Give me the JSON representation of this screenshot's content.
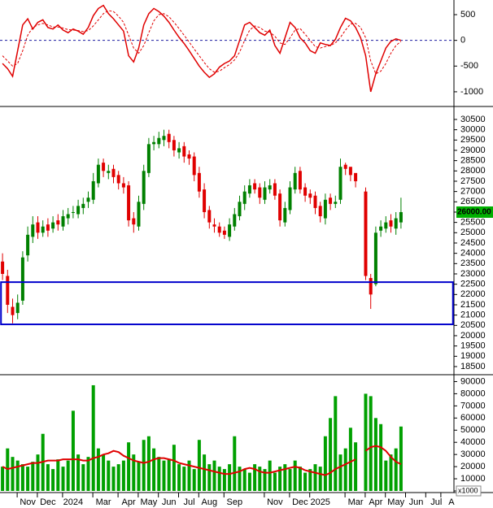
{
  "chart_data": [
    {
      "type": "line",
      "xlim": [
        -0.5,
        89.5
      ],
      "ylim": [
        -1270,
        785
      ],
      "yticks": [
        500,
        0,
        -500,
        -1000
      ],
      "reference_line": {
        "value": 0,
        "color": "#1a1aa0"
      },
      "series": [
        {
          "color": "#e00000",
          "dashed": false,
          "values": [
            -450,
            -550,
            -700,
            -200,
            300,
            420,
            220,
            350,
            400,
            250,
            220,
            300,
            200,
            150,
            220,
            180,
            120,
            250,
            480,
            620,
            680,
            520,
            420,
            300,
            180,
            -300,
            -420,
            -150,
            300,
            520,
            620,
            560,
            470,
            350,
            200,
            60,
            -60,
            -200,
            -350,
            -500,
            -620,
            -720,
            -650,
            -520,
            -450,
            -400,
            -300,
            0,
            300,
            350,
            250,
            150,
            100,
            200,
            -100,
            -250,
            50,
            350,
            250,
            50,
            -50,
            -200,
            -250,
            -50,
            -80,
            -100,
            20,
            250,
            430,
            380,
            250,
            50,
            -300,
            -1000,
            -650,
            -400,
            -150,
            -20,
            30,
            0
          ]
        },
        {
          "color": "#e00000",
          "dashed": true,
          "values": [
            -300,
            -400,
            -500,
            -450,
            -200,
            100,
            250,
            300,
            330,
            300,
            260,
            260,
            240,
            210,
            200,
            190,
            170,
            190,
            280,
            400,
            520,
            580,
            560,
            470,
            350,
            100,
            -150,
            -250,
            -100,
            150,
            380,
            500,
            520,
            460,
            350,
            230,
            100,
            -30,
            -170,
            -300,
            -430,
            -550,
            -620,
            -600,
            -530,
            -470,
            -380,
            -230,
            0,
            200,
            280,
            250,
            180,
            160,
            80,
            -50,
            -80,
            50,
            200,
            230,
            120,
            0,
            -120,
            -150,
            -120,
            -100,
            -50,
            60,
            200,
            320,
            330,
            250,
            50,
            -400,
            -650,
            -600,
            -450,
            -250,
            -100,
            -20
          ]
        }
      ]
    },
    {
      "type": "candlestick",
      "xlim": [
        -0.5,
        89.5
      ],
      "ylim": [
        18145,
        31090
      ],
      "yticks": [
        30500,
        30000,
        29500,
        29000,
        28500,
        28000,
        27500,
        27000,
        26500,
        26000,
        25500,
        25000,
        24500,
        24000,
        23500,
        23000,
        22500,
        22000,
        21500,
        21000,
        20500,
        20000,
        19500,
        19000,
        18500
      ],
      "up_color": "#008000",
      "down_color": "#e00000",
      "last_price": {
        "value": 26000,
        "label": "26000.00",
        "color": "#00b000"
      },
      "box": {
        "x": [
          -0.3,
          89.3
        ],
        "y": [
          20550,
          22600
        ],
        "color": "#0000cc"
      },
      "open": [
        23600,
        22900,
        21400,
        21100,
        21700,
        23900,
        24800,
        25500,
        25000,
        25400,
        25200,
        25600,
        25300,
        25700,
        26000,
        25900,
        26200,
        26500,
        26600,
        27400,
        28400,
        27900,
        28100,
        27800,
        27400,
        27300,
        25700,
        25300,
        26400,
        27900,
        29300,
        29300,
        29500,
        29800,
        29500,
        28900,
        29200,
        28800,
        28700,
        27900,
        27100,
        26100,
        25400,
        25300,
        25100,
        24800,
        25300,
        25800,
        26400,
        26900,
        27400,
        27200,
        26600,
        27100,
        27400,
        26900,
        25500,
        26100,
        27100,
        28000,
        27200,
        26900,
        26800,
        26300,
        25700,
        26700,
        26400,
        26600,
        28300,
        28200,
        27900,
        null,
        27000,
        22800,
        22500,
        25100,
        25200,
        25600,
        25200,
        25500
      ],
      "high": [
        24000,
        23200,
        21800,
        22000,
        24100,
        25300,
        25800,
        25800,
        25600,
        25700,
        25800,
        25900,
        26100,
        26200,
        26300,
        26600,
        26700,
        27000,
        27900,
        28600,
        28600,
        28300,
        28300,
        28000,
        27700,
        27500,
        26000,
        26800,
        28300,
        29600,
        29700,
        29900,
        30000,
        30000,
        29700,
        29400,
        29400,
        29000,
        28900,
        28200,
        27400,
        26300,
        25700,
        25500,
        25300,
        25700,
        26200,
        26800,
        27300,
        27600,
        27600,
        27400,
        27500,
        27600,
        27600,
        27100,
        26500,
        27500,
        28200,
        28200,
        27400,
        27100,
        27000,
        26500,
        26900,
        26900,
        26800,
        28600,
        28400,
        28100,
        27800,
        null,
        27200,
        23000,
        25300,
        25600,
        25800,
        25900,
        26000,
        26700
      ],
      "low": [
        22700,
        21100,
        20600,
        20800,
        21500,
        23600,
        24500,
        24700,
        24800,
        24800,
        25000,
        25100,
        25100,
        25400,
        25700,
        25700,
        25900,
        26200,
        26400,
        27200,
        27700,
        27600,
        27400,
        27100,
        26900,
        25300,
        25000,
        25100,
        26100,
        27700,
        29000,
        29100,
        29200,
        29100,
        28700,
        28600,
        28400,
        28300,
        27500,
        26700,
        25700,
        25200,
        25000,
        24800,
        24700,
        24600,
        25100,
        25600,
        26100,
        26700,
        26900,
        26400,
        26400,
        26900,
        26600,
        25300,
        25300,
        25900,
        26900,
        26900,
        26500,
        26400,
        25900,
        25500,
        25400,
        26100,
        26200,
        26400,
        27800,
        27500,
        27200,
        null,
        22700,
        21300,
        22400,
        24800,
        25000,
        25000,
        24900,
        25200
      ],
      "close": [
        23000,
        21500,
        21000,
        21600,
        23800,
        24900,
        25400,
        25000,
        25300,
        25100,
        25500,
        25400,
        25800,
        25900,
        26000,
        26300,
        26400,
        26700,
        27500,
        28300,
        28000,
        28000,
        27700,
        27400,
        27200,
        25600,
        25400,
        26500,
        28000,
        29300,
        29400,
        29600,
        29700,
        29400,
        29000,
        29100,
        28700,
        28600,
        27800,
        27000,
        26000,
        25500,
        25300,
        25000,
        24900,
        25400,
        25900,
        26500,
        27000,
        27300,
        27100,
        26700,
        27200,
        27300,
        26800,
        25600,
        26200,
        27200,
        27900,
        27100,
        26800,
        26700,
        26200,
        25800,
        26600,
        26400,
        26500,
        28200,
        28100,
        27800,
        27500,
        null,
        22900,
        22000,
        25000,
        25300,
        25500,
        25300,
        25700,
        26000
      ]
    },
    {
      "type": "bar",
      "xlim": [
        -0.5,
        89.5
      ],
      "ylim": [
        0,
        95000
      ],
      "yticks": [
        90000,
        80000,
        70000,
        60000,
        50000,
        40000,
        30000,
        20000,
        10000,
        0
      ],
      "unit_label": "x1000",
      "color": "#00a000",
      "values": [
        20000,
        35000,
        28000,
        25000,
        22000,
        20000,
        24000,
        30000,
        47000,
        22000,
        18000,
        26000,
        20000,
        25000,
        66000,
        30000,
        22000,
        28000,
        87000,
        35000,
        30000,
        25000,
        20000,
        22000,
        25000,
        40000,
        30000,
        24000,
        42000,
        45000,
        35000,
        28000,
        25000,
        26000,
        38000,
        22000,
        20000,
        25000,
        18000,
        42000,
        30000,
        22000,
        25000,
        20000,
        18000,
        22000,
        45000,
        20000,
        18000,
        15000,
        22000,
        20000,
        18000,
        25000,
        15000,
        20000,
        22000,
        18000,
        25000,
        20000,
        15000,
        18000,
        22000,
        20000,
        45000,
        60000,
        78000,
        30000,
        35000,
        52000,
        40000,
        null,
        80000,
        78000,
        60000,
        55000,
        25000,
        30000,
        35000,
        53000
      ],
      "moving_average": {
        "color": "#e00000",
        "values": [
          20000,
          18000,
          19000,
          20000,
          21000,
          22000,
          23000,
          23000,
          24000,
          25000,
          25000,
          25000,
          26000,
          26000,
          26000,
          26000,
          25000,
          25000,
          27000,
          28000,
          30000,
          31000,
          33000,
          32000,
          29000,
          27000,
          25000,
          24000,
          23000,
          24000,
          26000,
          27000,
          27000,
          26000,
          25000,
          23000,
          22000,
          21000,
          20000,
          19000,
          18000,
          17000,
          16000,
          15000,
          14000,
          14000,
          15000,
          16000,
          18000,
          19000,
          18000,
          16000,
          15000,
          15000,
          16000,
          17000,
          18000,
          19000,
          20000,
          19000,
          17000,
          16000,
          15000,
          14000,
          13000,
          15000,
          18000,
          20000,
          22000,
          24000,
          26000,
          null,
          33000,
          36000,
          37000,
          36000,
          33000,
          28000,
          24000,
          22000
        ]
      },
      "xticks": [
        {
          "value": 5,
          "label": "Nov"
        },
        {
          "value": 9,
          "label": "Dec"
        },
        {
          "value": 14,
          "label": "2024"
        },
        {
          "value": 20,
          "label": "Mar"
        },
        {
          "value": 25,
          "label": "Apr"
        },
        {
          "value": 29,
          "label": "May"
        },
        {
          "value": 33,
          "label": "Jun"
        },
        {
          "value": 37,
          "label": "Jul"
        },
        {
          "value": 41,
          "label": "Aug"
        },
        {
          "value": 46,
          "label": "Sep"
        },
        {
          "value": 54,
          "label": "Nov"
        },
        {
          "value": 59,
          "label": "Dec"
        },
        {
          "value": 63,
          "label": "2025"
        },
        {
          "value": 70,
          "label": "Mar"
        },
        {
          "value": 74,
          "label": "Apr"
        },
        {
          "value": 78,
          "label": "May"
        },
        {
          "value": 82,
          "label": "Jun"
        },
        {
          "value": 86,
          "label": "Jul"
        },
        {
          "value": 89,
          "label": "A"
        }
      ]
    }
  ]
}
